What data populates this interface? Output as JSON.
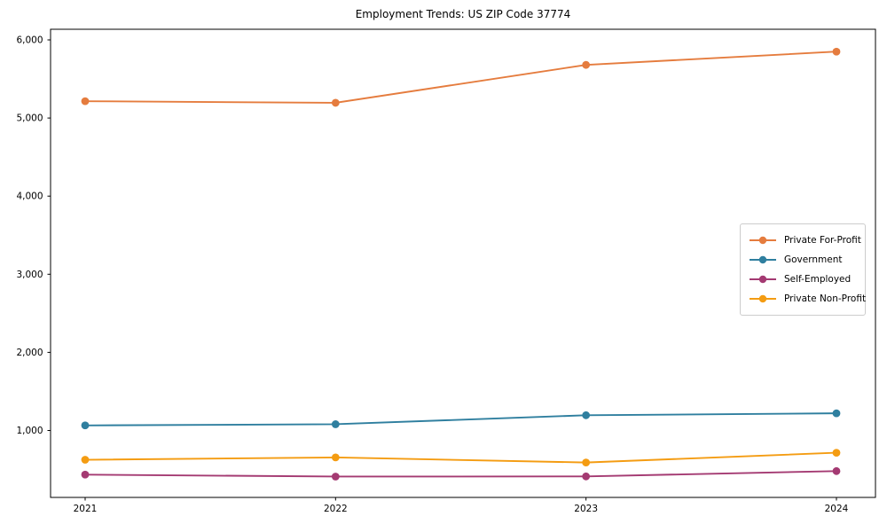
{
  "page": {
    "background_color": "#ffffff",
    "text_color": "#000000"
  },
  "chart_data": {
    "type": "line",
    "title": "Employment Trends: US ZIP Code 37774",
    "xlabel": "",
    "ylabel": "",
    "x_categories": [
      "2021",
      "2022",
      "2023",
      "2024"
    ],
    "series": [
      {
        "name": "Private For-Profit",
        "color": "#e57c3e",
        "values": [
          5215,
          5195,
          5680,
          5850
        ]
      },
      {
        "name": "Government",
        "color": "#2f7f9f",
        "values": [
          1065,
          1080,
          1195,
          1220
        ]
      },
      {
        "name": "Self-Employed",
        "color": "#a43a72",
        "values": [
          435,
          410,
          412,
          480
        ]
      },
      {
        "name": "Private Non-Profit",
        "color": "#f49c12",
        "values": [
          625,
          655,
          590,
          715
        ]
      }
    ],
    "y_ticks": [
      {
        "value": 1000,
        "label": "1,000"
      },
      {
        "value": 2000,
        "label": "2,000"
      },
      {
        "value": 3000,
        "label": "3,000"
      },
      {
        "value": 4000,
        "label": "4,000"
      },
      {
        "value": 5000,
        "label": "5,000"
      },
      {
        "value": 6000,
        "label": "6,000"
      }
    ],
    "ylim": [
      140,
      6120
    ],
    "grid": false,
    "legend_position": "center-right",
    "marker": "circle"
  }
}
